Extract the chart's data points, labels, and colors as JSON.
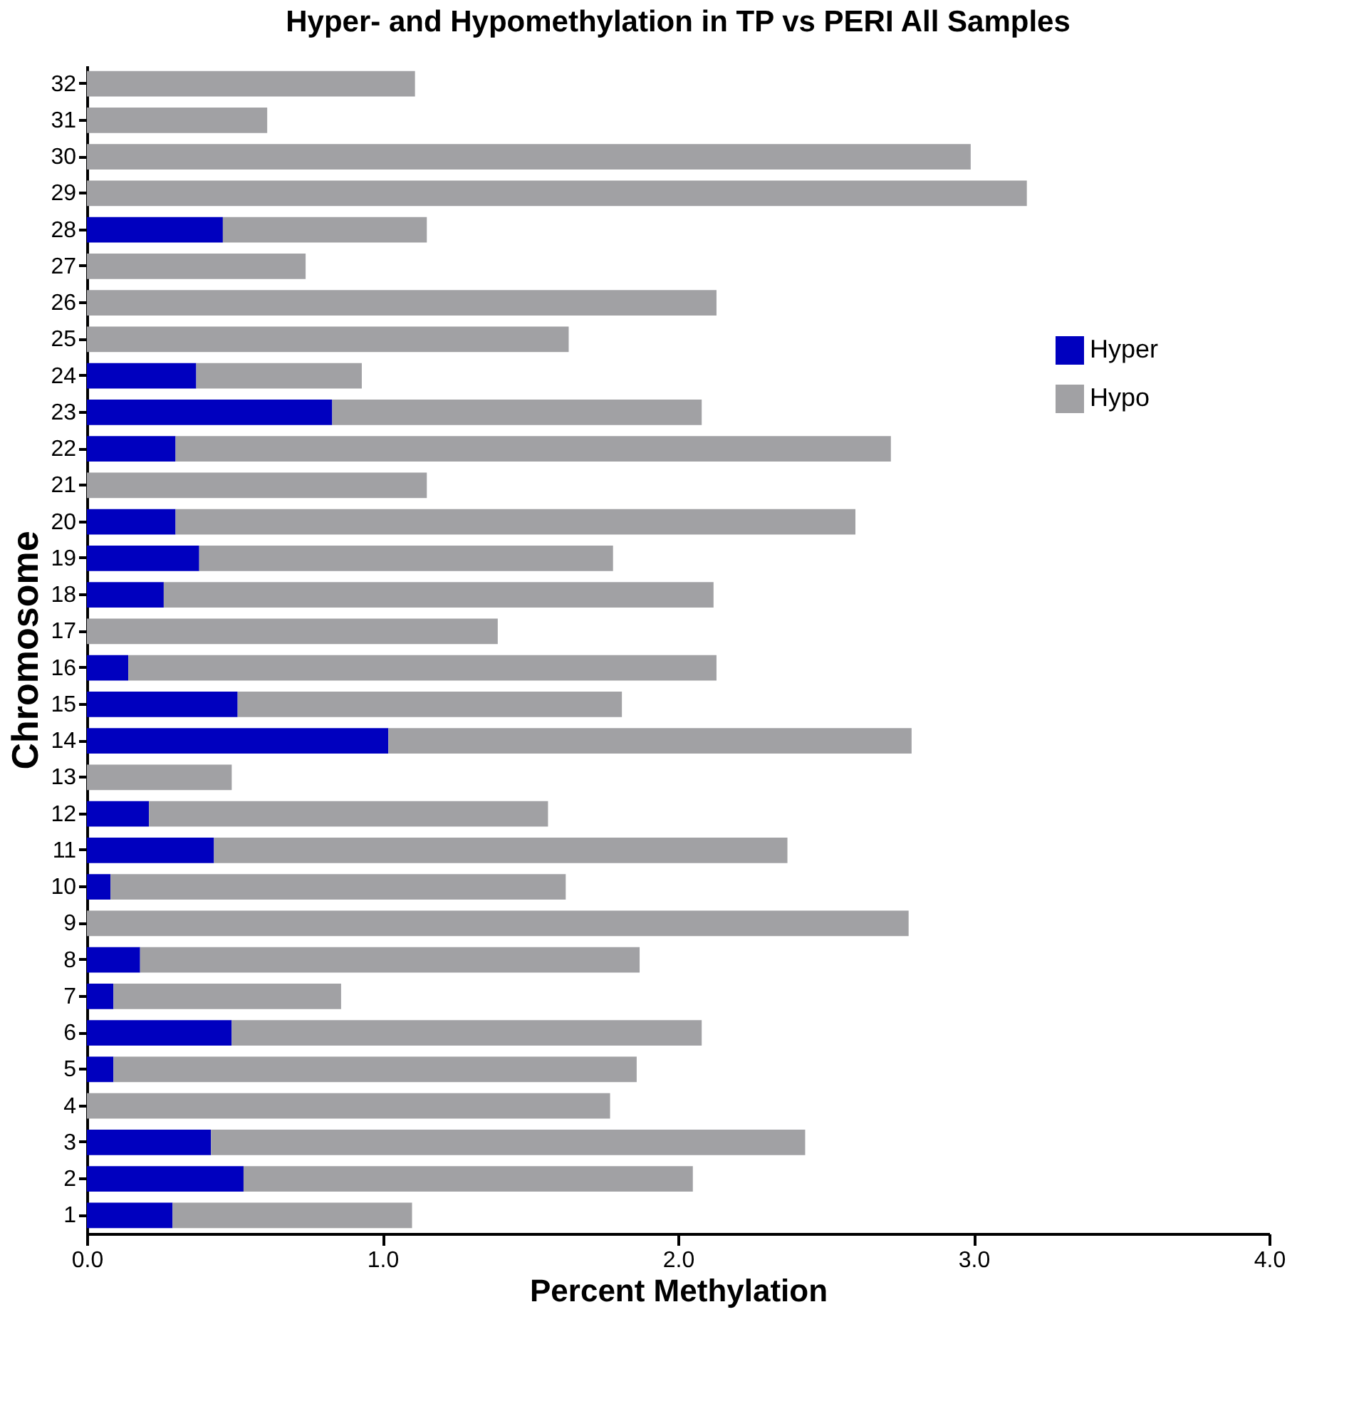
{
  "chart_data": {
    "type": "bar",
    "orientation": "horizontal",
    "stacked": true,
    "title": "Hyper- and Hypomethylation in TP vs PERI All Samples",
    "xlabel": "Percent Methylation",
    "ylabel": "Chromosome",
    "categories": [
      "32",
      "31",
      "30",
      "29",
      "28",
      "27",
      "26",
      "25",
      "24",
      "23",
      "22",
      "21",
      "20",
      "19",
      "18",
      "17",
      "16",
      "15",
      "14",
      "13",
      "12",
      "11",
      "10",
      "9",
      "8",
      "7",
      "6",
      "5",
      "4",
      "3",
      "2",
      "1"
    ],
    "series": [
      {
        "name": "Hyper",
        "color": "#0000bf",
        "values": [
          0,
          0,
          0,
          0,
          0.46,
          0,
          0,
          0,
          0.37,
          0.83,
          0.3,
          0,
          0.3,
          0.38,
          0.26,
          0,
          0.14,
          0.51,
          1.02,
          0,
          0.21,
          0.43,
          0.08,
          0,
          0.18,
          0.09,
          0.49,
          0.09,
          0,
          0.42,
          0.53,
          0.29
        ]
      },
      {
        "name": "Hypo",
        "color": "#a1a1a4",
        "values": [
          1.11,
          0.61,
          2.99,
          3.18,
          0.69,
          0.74,
          2.13,
          1.63,
          0.56,
          1.25,
          2.42,
          1.15,
          2.3,
          1.4,
          1.86,
          1.39,
          1.99,
          1.3,
          1.77,
          0.49,
          1.35,
          1.94,
          1.54,
          2.78,
          1.69,
          0.77,
          1.59,
          1.77,
          1.77,
          2.01,
          1.52,
          0.81
        ]
      }
    ],
    "xlim": [
      0,
      4
    ],
    "xticks": [
      {
        "value": 0,
        "label": "0.0"
      },
      {
        "value": 1,
        "label": "1.0"
      },
      {
        "value": 2,
        "label": "2.0"
      },
      {
        "value": 3,
        "label": "3.0"
      },
      {
        "value": 4,
        "label": "4.0"
      }
    ],
    "grid": false,
    "legend": "top right"
  }
}
